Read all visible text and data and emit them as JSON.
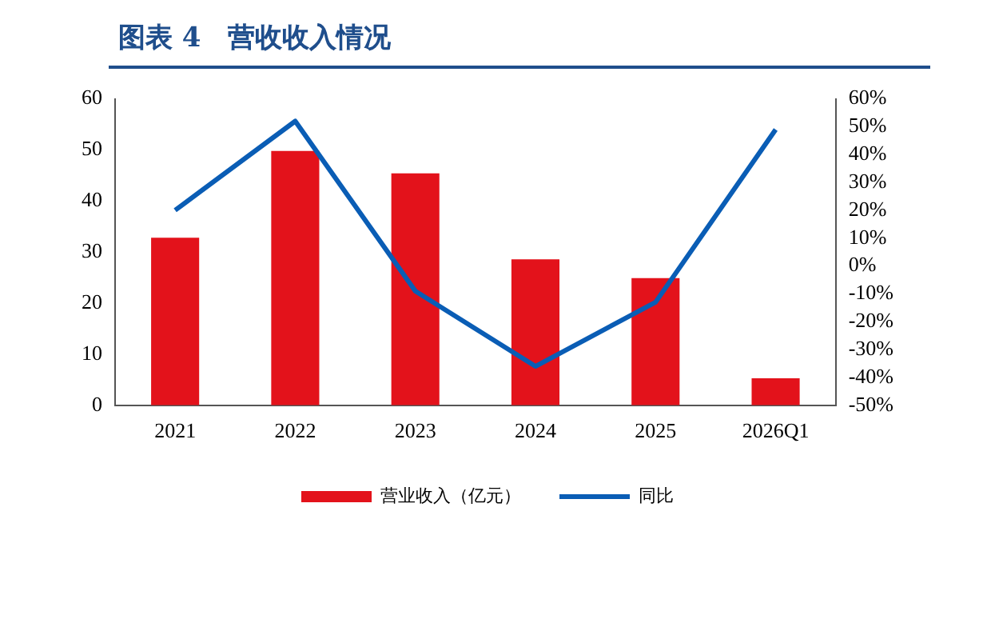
{
  "chart_data": {
    "type": "bar",
    "title": "图表 4　营收收入情况",
    "categories": [
      "2021",
      "2022",
      "2023",
      "2024",
      "2025",
      "2026Q1"
    ],
    "series": [
      {
        "name": "营业收入（亿元）",
        "color": "#e3121b",
        "values": [
          32.8,
          49.8,
          45.4,
          28.6,
          24.9,
          5.3
        ]
      },
      {
        "name": "同比",
        "type": "line",
        "axis": "y2",
        "color": "#0a5db5",
        "values": [
          20,
          52,
          -9,
          -36,
          -13,
          49
        ]
      }
    ],
    "ylim": [
      0,
      60
    ],
    "yticks": [
      0,
      10,
      20,
      30,
      40,
      50,
      60
    ],
    "y2lim": [
      -50,
      60
    ],
    "y2ticks": [
      {
        "value": -50,
        "label": "-50%"
      },
      {
        "value": -40,
        "label": "-40%"
      },
      {
        "value": -30,
        "label": "-30%"
      },
      {
        "value": -20,
        "label": "-20%"
      },
      {
        "value": -10,
        "label": "-10%"
      },
      {
        "value": 0,
        "label": "0%"
      },
      {
        "value": 10,
        "label": "10%"
      },
      {
        "value": 20,
        "label": "20%"
      },
      {
        "value": 30,
        "label": "30%"
      },
      {
        "value": 40,
        "label": "40%"
      },
      {
        "value": 50,
        "label": "50%"
      },
      {
        "value": 60,
        "label": "60%"
      }
    ],
    "legend": "bottom",
    "marker": "none",
    "line_style": "solid"
  }
}
